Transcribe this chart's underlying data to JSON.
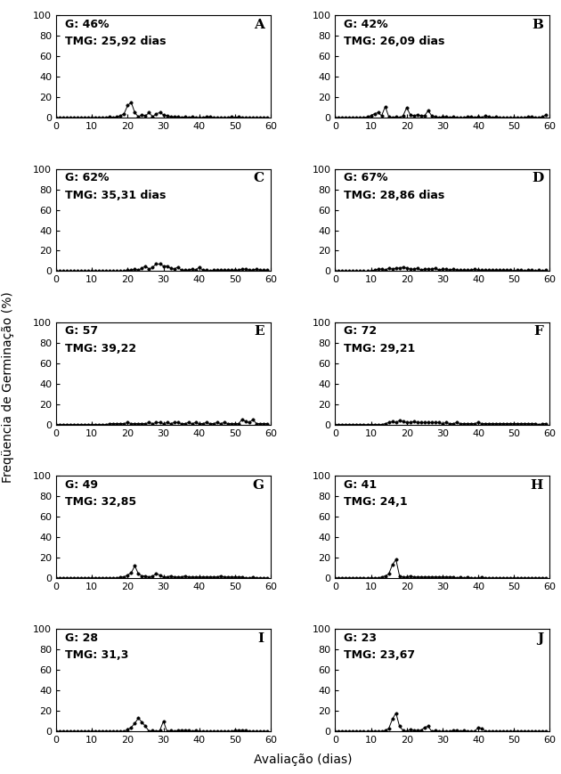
{
  "panels": [
    {
      "label": "A",
      "G_text": "G: 46%",
      "TMG_text": "TMG: 25,92 dias",
      "data": [
        0,
        0,
        0,
        0,
        0,
        0,
        0,
        0,
        0,
        0,
        0,
        0,
        0,
        0,
        0,
        1,
        0,
        1,
        2,
        4,
        12,
        15,
        5,
        1,
        3,
        2,
        5,
        1,
        4,
        5,
        3,
        2,
        1,
        1,
        1,
        0,
        1,
        0,
        1,
        0,
        0,
        0,
        1,
        1,
        0,
        0,
        0,
        0,
        0,
        1,
        0,
        1,
        0,
        0,
        0,
        0,
        0,
        0,
        0,
        0
      ]
    },
    {
      "label": "B",
      "G_text": "G: 42%",
      "TMG_text": "TMG: 26,09 dias",
      "data": [
        0,
        0,
        0,
        0,
        0,
        0,
        0,
        0,
        0,
        1,
        2,
        4,
        5,
        2,
        11,
        1,
        0,
        1,
        0,
        2,
        10,
        3,
        2,
        3,
        2,
        2,
        7,
        2,
        1,
        0,
        1,
        1,
        0,
        1,
        0,
        0,
        0,
        1,
        1,
        0,
        1,
        0,
        2,
        1,
        0,
        1,
        0,
        0,
        0,
        0,
        0,
        0,
        0,
        0,
        1,
        1,
        0,
        0,
        1,
        3
      ]
    },
    {
      "label": "C",
      "G_text": "G: 62%",
      "TMG_text": "TMG: 35,31 dias",
      "data": [
        0,
        0,
        0,
        0,
        0,
        0,
        0,
        0,
        0,
        0,
        0,
        0,
        0,
        0,
        0,
        0,
        0,
        0,
        0,
        0,
        1,
        1,
        2,
        1,
        3,
        5,
        2,
        4,
        7,
        7,
        5,
        5,
        3,
        2,
        4,
        1,
        1,
        1,
        2,
        1,
        4,
        1,
        1,
        0,
        1,
        1,
        1,
        1,
        1,
        1,
        1,
        1,
        2,
        2,
        1,
        1,
        2,
        1,
        1,
        1
      ]
    },
    {
      "label": "D",
      "G_text": "G: 67%",
      "TMG_text": "TMG: 28,86 dias",
      "data": [
        0,
        0,
        0,
        0,
        0,
        0,
        0,
        0,
        0,
        0,
        0,
        1,
        2,
        2,
        1,
        3,
        2,
        3,
        3,
        4,
        3,
        2,
        2,
        3,
        1,
        2,
        2,
        2,
        3,
        1,
        2,
        2,
        1,
        2,
        1,
        1,
        1,
        1,
        1,
        2,
        1,
        1,
        1,
        1,
        1,
        1,
        1,
        1,
        1,
        1,
        0,
        1,
        1,
        0,
        1,
        1,
        0,
        1,
        0,
        1
      ]
    },
    {
      "label": "E",
      "G_text": "G: 57",
      "TMG_text": "TMG: 39,22",
      "data": [
        0,
        0,
        0,
        0,
        0,
        0,
        0,
        0,
        0,
        0,
        0,
        0,
        0,
        0,
        0,
        1,
        1,
        1,
        1,
        1,
        2,
        1,
        1,
        1,
        1,
        1,
        2,
        1,
        2,
        2,
        1,
        2,
        1,
        2,
        2,
        1,
        1,
        2,
        1,
        2,
        1,
        1,
        2,
        1,
        1,
        2,
        1,
        2,
        1,
        1,
        1,
        1,
        5,
        3,
        2,
        5,
        1,
        1,
        1,
        1
      ]
    },
    {
      "label": "F",
      "G_text": "G: 72",
      "TMG_text": "TMG: 29,21",
      "data": [
        0,
        0,
        0,
        0,
        0,
        0,
        0,
        0,
        0,
        0,
        0,
        0,
        0,
        0,
        1,
        2,
        3,
        2,
        4,
        3,
        2,
        2,
        3,
        2,
        2,
        2,
        2,
        2,
        2,
        2,
        1,
        2,
        1,
        1,
        2,
        1,
        1,
        1,
        1,
        1,
        2,
        1,
        1,
        1,
        1,
        1,
        1,
        1,
        1,
        1,
        1,
        1,
        1,
        1,
        1,
        1,
        1,
        0,
        1,
        1
      ]
    },
    {
      "label": "G",
      "G_text": "G: 49",
      "TMG_text": "TMG: 32,85",
      "data": [
        0,
        0,
        0,
        0,
        0,
        0,
        0,
        0,
        0,
        0,
        0,
        0,
        0,
        0,
        0,
        0,
        0,
        0,
        1,
        1,
        3,
        5,
        12,
        4,
        2,
        2,
        1,
        2,
        4,
        3,
        1,
        1,
        2,
        1,
        1,
        1,
        2,
        1,
        1,
        1,
        1,
        1,
        1,
        1,
        1,
        1,
        2,
        1,
        1,
        1,
        1,
        1,
        1,
        0,
        0,
        1,
        0,
        0,
        0,
        0
      ]
    },
    {
      "label": "H",
      "G_text": "G: 41",
      "TMG_text": "TMG: 24,1",
      "data": [
        0,
        0,
        0,
        0,
        0,
        0,
        0,
        0,
        0,
        0,
        0,
        0,
        0,
        1,
        2,
        4,
        13,
        18,
        2,
        1,
        1,
        2,
        1,
        1,
        1,
        1,
        1,
        1,
        1,
        1,
        1,
        1,
        1,
        1,
        0,
        1,
        0,
        1,
        0,
        0,
        0,
        1,
        0,
        0,
        0,
        0,
        0,
        0,
        0,
        0,
        0,
        0,
        0,
        0,
        0,
        0,
        0,
        0,
        0,
        0
      ]
    },
    {
      "label": "I",
      "G_text": "G: 28",
      "TMG_text": "TMG: 31,3",
      "data": [
        0,
        0,
        0,
        0,
        0,
        0,
        0,
        0,
        0,
        0,
        0,
        0,
        0,
        0,
        0,
        0,
        0,
        0,
        0,
        0,
        2,
        4,
        8,
        13,
        9,
        5,
        0,
        1,
        0,
        1,
        10,
        0,
        1,
        0,
        1,
        1,
        1,
        1,
        0,
        1,
        0,
        0,
        0,
        0,
        0,
        0,
        0,
        0,
        0,
        0,
        1,
        1,
        1,
        1,
        0,
        0,
        0,
        0,
        0,
        0
      ]
    },
    {
      "label": "J",
      "G_text": "G: 23",
      "TMG_text": "TMG: 23,67",
      "data": [
        0,
        0,
        0,
        0,
        0,
        0,
        0,
        0,
        0,
        0,
        0,
        0,
        0,
        0,
        1,
        3,
        12,
        18,
        5,
        1,
        0,
        2,
        1,
        1,
        1,
        4,
        5,
        0,
        1,
        0,
        0,
        0,
        0,
        1,
        1,
        0,
        1,
        0,
        0,
        0,
        4,
        3,
        0,
        0,
        0,
        0,
        0,
        0,
        0,
        0,
        0,
        0,
        0,
        0,
        0,
        0,
        0,
        0,
        0,
        0
      ]
    }
  ],
  "xlabel": "Avaliação (dias)",
  "ylabel": "Freqüencia de Germinação (%)",
  "xlim": [
    0,
    60
  ],
  "ylim": [
    0,
    100
  ],
  "yticks": [
    0,
    20,
    40,
    60,
    80,
    100
  ],
  "xticks": [
    0,
    10,
    20,
    30,
    40,
    50,
    60
  ],
  "line_color": "#000000",
  "marker": "o",
  "markersize": 2.5,
  "linewidth": 0.7,
  "bg_color": "#ffffff",
  "text_fontsize": 9,
  "label_fontsize": 10,
  "tick_fontsize": 8,
  "panel_letter_fontsize": 11
}
